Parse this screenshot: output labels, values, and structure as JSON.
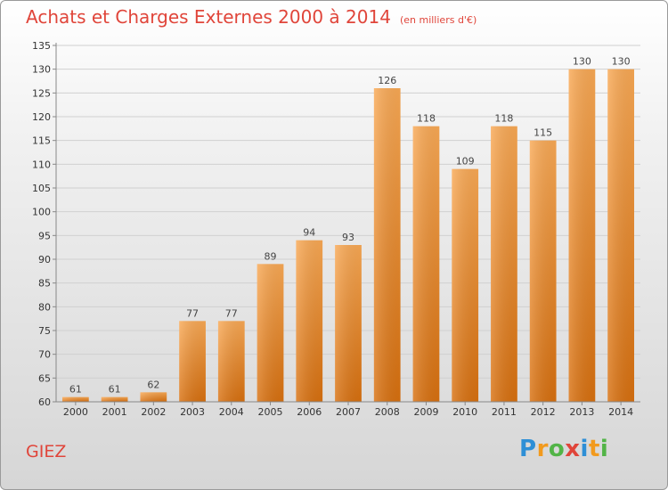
{
  "title": "Achats et Charges Externes 2000 à 2014",
  "unit_note": "(en milliers d'€)",
  "commune": "GIEZ",
  "logo": {
    "letters": [
      "P",
      "r",
      "o",
      "x",
      "i",
      "t",
      "i"
    ],
    "colors": [
      "#2e8fd6",
      "#f29a1d",
      "#52b447",
      "#e0453a",
      "#2e8fd6",
      "#f29a1d",
      "#52b447"
    ]
  },
  "colors": {
    "bar_light": "#f8a64e",
    "bar_dark": "#d96f12",
    "title": "#e0453a"
  },
  "chart_data": {
    "type": "bar",
    "title": "Achats et Charges Externes 2000 à 2014",
    "categories": [
      "2000",
      "2001",
      "2002",
      "2003",
      "2004",
      "2005",
      "2006",
      "2007",
      "2008",
      "2009",
      "2010",
      "2011",
      "2012",
      "2013",
      "2014"
    ],
    "values": [
      61,
      61,
      62,
      77,
      77,
      89,
      94,
      93,
      126,
      118,
      109,
      118,
      115,
      130,
      130
    ],
    "ylim": [
      60,
      135
    ],
    "yticks": [
      60,
      65,
      70,
      75,
      80,
      85,
      90,
      95,
      100,
      105,
      110,
      115,
      120,
      125,
      130,
      135
    ],
    "grid": true,
    "xlabel": "",
    "ylabel": ""
  }
}
